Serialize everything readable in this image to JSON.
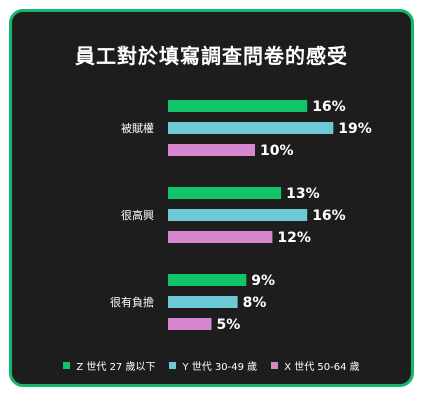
{
  "chart_data": {
    "type": "bar",
    "orientation": "horizontal",
    "title": "員工對於填寫調查問卷的感受",
    "categories": [
      "被賦權",
      "很高興",
      "很有負擔"
    ],
    "series": [
      {
        "name": "Z 世代 27 歲以下",
        "color": "#10c46a",
        "values": [
          16,
          13,
          9
        ]
      },
      {
        "name": "Y 世代 30-49 歲",
        "color": "#6ec9d6",
        "values": [
          19,
          16,
          8
        ]
      },
      {
        "name": "X 世代 50-64 歲",
        "color": "#d886cf",
        "values": [
          10,
          12,
          5
        ]
      }
    ],
    "value_suffix": "%",
    "legend_position": "bottom",
    "grid": false
  },
  "colors": {
    "background": "#1d1d1d",
    "border": "#14b86c",
    "text": "#ffffff"
  }
}
